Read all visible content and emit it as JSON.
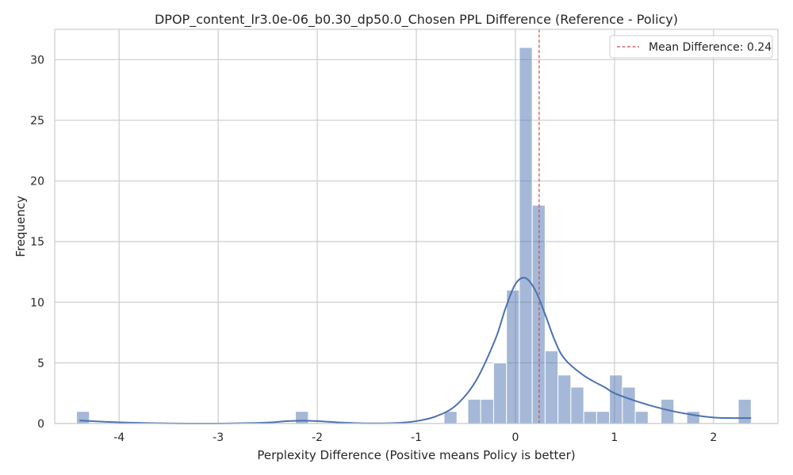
{
  "chart_data": {
    "type": "bar",
    "subtype": "histogram-with-kde",
    "title": "DPOP_content_lr3.0e-06_b0.30_dp50.0_Chosen PPL Difference (Reference - Policy)",
    "xlabel": "Perplexity Difference (Positive means Policy is better)",
    "ylabel": "Frequency",
    "xlim": [
      -4.65,
      2.65
    ],
    "ylim": [
      0,
      32.5
    ],
    "x_ticks": [
      -4,
      -3,
      -2,
      -1,
      0,
      1,
      2
    ],
    "x_tick_labels": [
      "-4",
      "-3",
      "-2",
      "-1",
      "0",
      "1",
      "2"
    ],
    "y_ticks": [
      0,
      5,
      10,
      15,
      20,
      25,
      30
    ],
    "y_tick_labels": [
      "0",
      "5",
      "10",
      "15",
      "20",
      "25",
      "30"
    ],
    "grid": true,
    "legend_position": "top-right",
    "bin_width": 0.13,
    "bins": [
      {
        "x0": -4.43,
        "x1": -4.3,
        "count": 1
      },
      {
        "x0": -2.22,
        "x1": -2.09,
        "count": 1
      },
      {
        "x0": -0.72,
        "x1": -0.59,
        "count": 1
      },
      {
        "x0": -0.48,
        "x1": -0.35,
        "count": 2
      },
      {
        "x0": -0.35,
        "x1": -0.22,
        "count": 2
      },
      {
        "x0": -0.22,
        "x1": -0.09,
        "count": 5
      },
      {
        "x0": -0.09,
        "x1": 0.04,
        "count": 11
      },
      {
        "x0": 0.04,
        "x1": 0.17,
        "count": 31
      },
      {
        "x0": 0.17,
        "x1": 0.3,
        "count": 18
      },
      {
        "x0": 0.3,
        "x1": 0.43,
        "count": 6
      },
      {
        "x0": 0.43,
        "x1": 0.56,
        "count": 4
      },
      {
        "x0": 0.56,
        "x1": 0.69,
        "count": 3
      },
      {
        "x0": 0.69,
        "x1": 0.82,
        "count": 1
      },
      {
        "x0": 0.82,
        "x1": 0.95,
        "count": 1
      },
      {
        "x0": 0.95,
        "x1": 1.08,
        "count": 4
      },
      {
        "x0": 1.08,
        "x1": 1.21,
        "count": 3
      },
      {
        "x0": 1.21,
        "x1": 1.34,
        "count": 1
      },
      {
        "x0": 1.47,
        "x1": 1.6,
        "count": 2
      },
      {
        "x0": 1.73,
        "x1": 1.86,
        "count": 1
      },
      {
        "x0": 2.25,
        "x1": 2.38,
        "count": 2
      }
    ],
    "kde": {
      "x": [
        -4.4,
        -4.0,
        -3.5,
        -3.0,
        -2.5,
        -2.3,
        -2.15,
        -2.0,
        -1.8,
        -1.5,
        -1.2,
        -1.0,
        -0.8,
        -0.6,
        -0.4,
        -0.2,
        -0.1,
        0.0,
        0.1,
        0.2,
        0.3,
        0.4,
        0.5,
        0.7,
        0.9,
        1.0,
        1.2,
        1.4,
        1.6,
        1.8,
        2.0,
        2.2,
        2.38
      ],
      "y": [
        0.25,
        0.1,
        0.02,
        0.0,
        0.08,
        0.2,
        0.24,
        0.2,
        0.1,
        0.02,
        0.05,
        0.2,
        0.6,
        1.5,
        3.5,
        7.0,
        9.5,
        11.5,
        12.0,
        11.0,
        9.0,
        6.8,
        5.3,
        3.9,
        3.0,
        2.5,
        1.9,
        1.4,
        1.0,
        0.7,
        0.5,
        0.45,
        0.45
      ]
    },
    "mean_line": {
      "x": 0.24,
      "label": "Mean Difference: 0.24"
    },
    "colors": {
      "bar_fill": "#4c72b0",
      "bar_opacity": 0.5,
      "kde_line": "#4c72b0",
      "mean_line": "#c44e52",
      "grid": "#cccccc",
      "axes_edge": "#cccccc"
    }
  }
}
